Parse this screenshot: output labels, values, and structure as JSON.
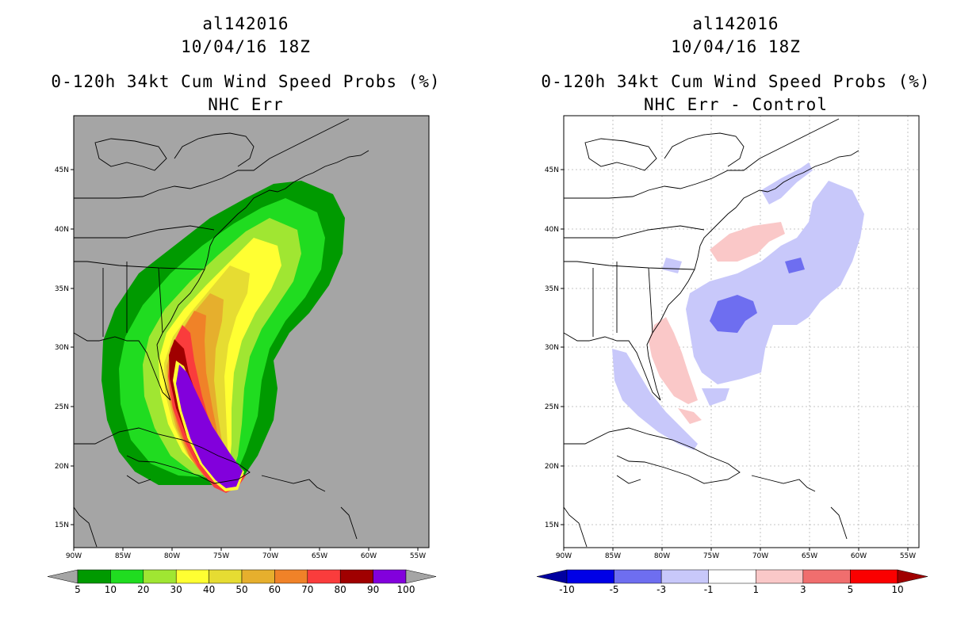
{
  "left_panel": {
    "storm_id": "al142016",
    "datetime": "10/04/16 18Z",
    "product": "0-120h 34kt Cum Wind Speed Probs (%)",
    "subtitle": "NHC Err",
    "background_color": "#a5a5a5",
    "colorbar": {
      "labels": [
        "5",
        "10",
        "20",
        "30",
        "40",
        "50",
        "60",
        "70",
        "80",
        "90",
        "100"
      ],
      "colors": [
        "#009a00",
        "#20dc20",
        "#a0e632",
        "#ffff32",
        "#e6dc32",
        "#e6af2d",
        "#f08228",
        "#fa3c3c",
        "#a00000",
        "#8200dc"
      ],
      "under_color": "#a5a5a5",
      "over_color": "#a5a5a5"
    }
  },
  "right_panel": {
    "storm_id": "al142016",
    "datetime": "10/04/16 18Z",
    "product": "0-120h 34kt Cum Wind Speed Probs (%)",
    "subtitle": "NHC Err - Control",
    "background_color": "#ffffff",
    "colorbar": {
      "labels": [
        "-10",
        "-5",
        "-3",
        "-1",
        "1",
        "3",
        "5",
        "10"
      ],
      "colors": [
        "#0000e6",
        "#6e6ef0",
        "#c8c8fa",
        "#ffffff",
        "#fac8c8",
        "#f06e6e",
        "#fa0000"
      ],
      "under_color": "#0000a0",
      "over_color": "#a00000"
    }
  },
  "axes": {
    "lon_labels": [
      "90W",
      "85W",
      "80W",
      "75W",
      "70W",
      "65W",
      "60W",
      "55W"
    ],
    "lat_labels": [
      "45N",
      "40N",
      "35N",
      "30N",
      "25N",
      "20N",
      "15N"
    ]
  }
}
